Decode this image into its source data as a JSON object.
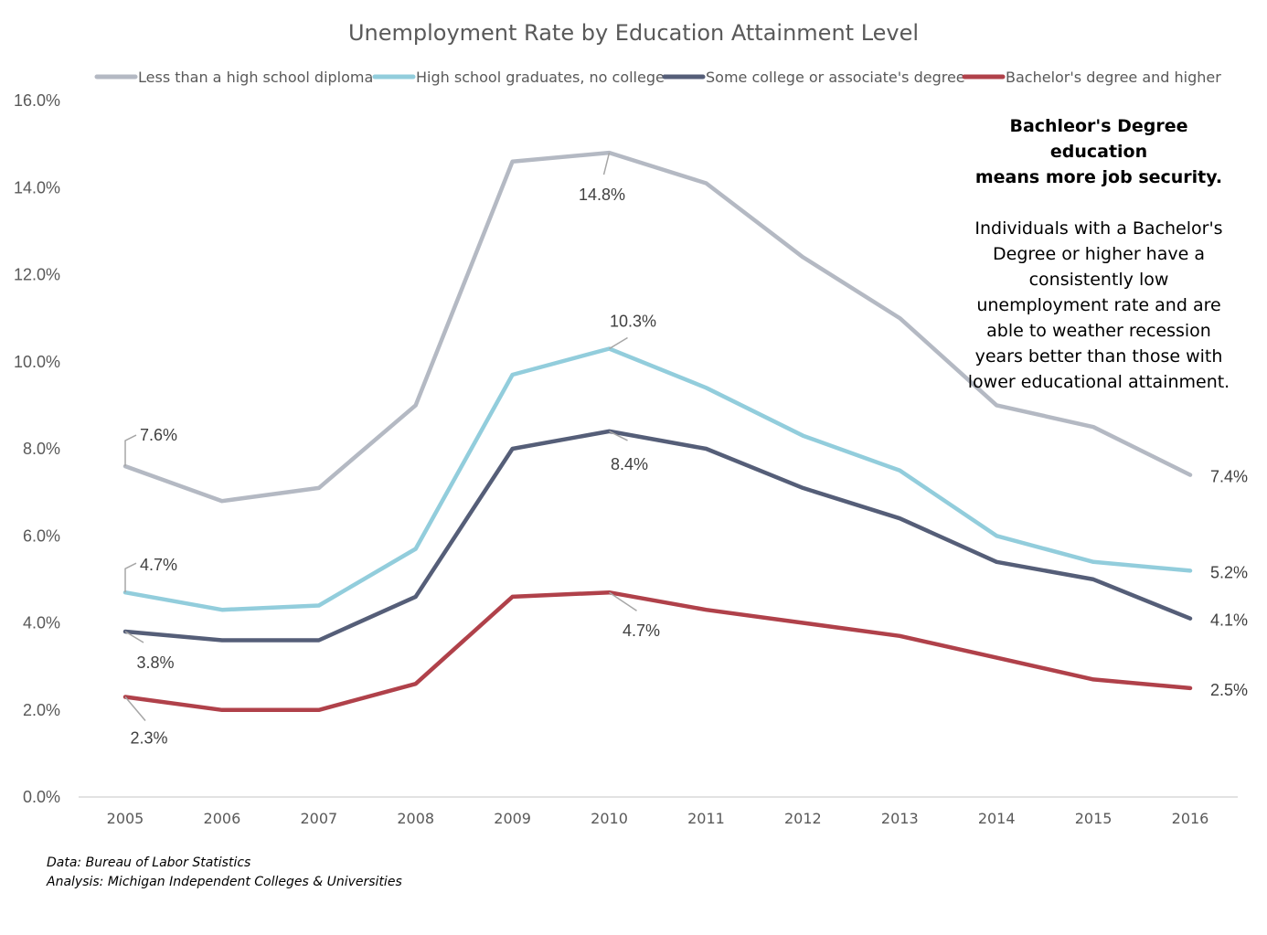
{
  "chart_data": {
    "type": "line",
    "title": "Unemployment Rate by Education Attainment Level",
    "categories": [
      "2005",
      "2006",
      "2007",
      "2008",
      "2009",
      "2010",
      "2011",
      "2012",
      "2013",
      "2014",
      "2015",
      "2016"
    ],
    "ylim": [
      0,
      16
    ],
    "y_ticks": [
      0,
      2,
      4,
      6,
      8,
      10,
      12,
      14,
      16
    ],
    "y_tick_labels": [
      "0.0%",
      "2.0%",
      "4.0%",
      "6.0%",
      "8.0%",
      "10.0%",
      "12.0%",
      "14.0%",
      "16.0%"
    ],
    "grid": false,
    "legend_position": "top",
    "series": [
      {
        "name": "Less than a high school diploma",
        "color": "#B4B9C3",
        "values": [
          7.6,
          6.8,
          7.1,
          9.0,
          14.6,
          14.8,
          14.1,
          12.4,
          11.0,
          9.0,
          8.5,
          7.4
        ]
      },
      {
        "name": "High school graduates, no college",
        "color": "#92CDDC",
        "values": [
          4.7,
          4.3,
          4.4,
          5.7,
          9.7,
          10.3,
          9.4,
          8.3,
          7.5,
          6.0,
          5.4,
          5.2
        ]
      },
      {
        "name": "Some college or associate's degree",
        "color": "#555E78",
        "values": [
          3.8,
          3.6,
          3.6,
          4.6,
          8.0,
          8.4,
          8.0,
          7.1,
          6.4,
          5.4,
          5.0,
          4.1
        ]
      },
      {
        "name": "Bachelor's degree and higher",
        "color": "#B0414A",
        "values": [
          2.3,
          2.0,
          2.0,
          2.6,
          4.6,
          4.7,
          4.3,
          4.0,
          3.7,
          3.2,
          2.7,
          2.5
        ]
      }
    ],
    "data_labels": [
      {
        "series": 0,
        "index": 0,
        "text": "7.6%"
      },
      {
        "series": 0,
        "index": 5,
        "text": "14.8%"
      },
      {
        "series": 0,
        "index": 11,
        "text": "7.4%"
      },
      {
        "series": 1,
        "index": 0,
        "text": "4.7%"
      },
      {
        "series": 1,
        "index": 5,
        "text": "10.3%"
      },
      {
        "series": 1,
        "index": 11,
        "text": "5.2%"
      },
      {
        "series": 2,
        "index": 0,
        "text": "3.8%"
      },
      {
        "series": 2,
        "index": 5,
        "text": "8.4%"
      },
      {
        "series": 2,
        "index": 11,
        "text": "4.1%"
      },
      {
        "series": 3,
        "index": 0,
        "text": "2.3%"
      },
      {
        "series": 3,
        "index": 5,
        "text": "4.7%"
      },
      {
        "series": 3,
        "index": 11,
        "text": "2.5%"
      }
    ]
  },
  "annotation": {
    "heading_line1": "Bachleor's Degree education",
    "heading_line2": "means more job security.",
    "body_lines": [
      "Individuals with a Bachelor's",
      "Degree or higher have a",
      "consistently low",
      "unemployment rate and are",
      "able to weather recession",
      "years better than those with",
      "lower educational attainment."
    ]
  },
  "source": {
    "data_line": "Data: Bureau of Labor Statistics",
    "analysis_line": "Analysis: Michigan Independent Colleges & Universities"
  },
  "colors": {
    "axis": "#D9D9D9",
    "leader": "#A6A6A6",
    "text": "#595959"
  }
}
